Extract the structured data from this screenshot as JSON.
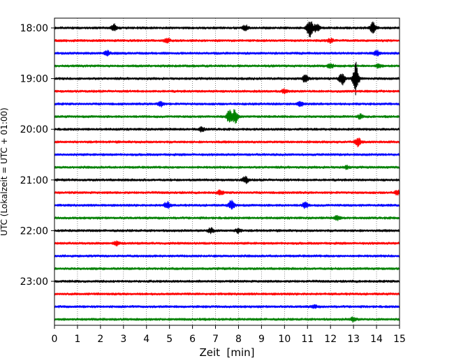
{
  "chart_data": {
    "type": "line",
    "title": "",
    "xlabel": "Zeit  [min]",
    "ylabel": "UTC (Lokalzeit = UTC + 01:00)",
    "xlim": [
      0,
      15
    ],
    "x_ticks": [
      0,
      1,
      2,
      3,
      4,
      5,
      6,
      7,
      8,
      9,
      10,
      11,
      12,
      13,
      14,
      15
    ],
    "x_tick_labels": [
      "0",
      "1",
      "2",
      "3",
      "4",
      "5",
      "6",
      "7",
      "8",
      "9",
      "10",
      "11",
      "12",
      "13",
      "14",
      "15"
    ],
    "y_tick_labels": [
      "18:00",
      "19:00",
      "20:00",
      "21:00",
      "22:00",
      "23:00"
    ],
    "grid": "vertical dotted",
    "trace_interval_minutes": 15,
    "trace_colors": [
      "#000000",
      "#ff0000",
      "#0000ff",
      "#008000"
    ],
    "traces": [
      {
        "start": "18:00",
        "color": "#000000",
        "events": [
          {
            "t": 2.6,
            "amp": 5
          },
          {
            "t": 8.3,
            "amp": 4
          },
          {
            "t": 11.1,
            "amp": 14
          },
          {
            "t": 11.4,
            "amp": 6
          },
          {
            "t": 13.85,
            "amp": 8
          }
        ]
      },
      {
        "start": "18:15",
        "color": "#ff0000",
        "events": [
          {
            "t": 4.9,
            "amp": 3
          },
          {
            "t": 12.0,
            "amp": 3
          }
        ]
      },
      {
        "start": "18:30",
        "color": "#0000ff",
        "events": [
          {
            "t": 2.3,
            "amp": 3
          },
          {
            "t": 14.0,
            "amp": 4
          }
        ]
      },
      {
        "start": "18:45",
        "color": "#008000",
        "events": [
          {
            "t": 12.0,
            "amp": 3
          },
          {
            "t": 14.1,
            "amp": 3
          }
        ]
      },
      {
        "start": "19:00",
        "color": "#000000",
        "events": [
          {
            "t": 10.9,
            "amp": 5
          },
          {
            "t": 12.5,
            "amp": 10
          },
          {
            "t": 13.1,
            "amp": 22
          }
        ]
      },
      {
        "start": "19:15",
        "color": "#ff0000",
        "events": [
          {
            "t": 10.0,
            "amp": 3
          }
        ]
      },
      {
        "start": "19:30",
        "color": "#0000ff",
        "events": [
          {
            "t": 4.6,
            "amp": 4
          },
          {
            "t": 10.7,
            "amp": 3
          }
        ]
      },
      {
        "start": "19:45",
        "color": "#008000",
        "events": [
          {
            "t": 7.6,
            "amp": 8
          },
          {
            "t": 7.85,
            "amp": 10
          },
          {
            "t": 13.3,
            "amp": 3
          }
        ]
      },
      {
        "start": "20:00",
        "color": "#000000",
        "events": [
          {
            "t": 6.4,
            "amp": 3
          }
        ]
      },
      {
        "start": "20:15",
        "color": "#ff0000",
        "events": [
          {
            "t": 13.2,
            "amp": 6
          }
        ]
      },
      {
        "start": "20:30",
        "color": "#0000ff",
        "events": []
      },
      {
        "start": "20:45",
        "color": "#008000",
        "events": [
          {
            "t": 12.7,
            "amp": 2
          }
        ]
      },
      {
        "start": "21:00",
        "color": "#000000",
        "events": [
          {
            "t": 8.3,
            "amp": 5
          }
        ]
      },
      {
        "start": "21:15",
        "color": "#ff0000",
        "events": [
          {
            "t": 7.2,
            "amp": 3
          },
          {
            "t": 14.9,
            "amp": 3
          }
        ]
      },
      {
        "start": "21:30",
        "color": "#0000ff",
        "events": [
          {
            "t": 4.9,
            "amp": 5
          },
          {
            "t": 7.7,
            "amp": 7
          },
          {
            "t": 10.9,
            "amp": 4
          }
        ]
      },
      {
        "start": "21:45",
        "color": "#008000",
        "events": [
          {
            "t": 12.3,
            "amp": 3
          }
        ]
      },
      {
        "start": "22:00",
        "color": "#000000",
        "events": [
          {
            "t": 6.8,
            "amp": 4
          },
          {
            "t": 8.0,
            "amp": 3
          }
        ]
      },
      {
        "start": "22:15",
        "color": "#ff0000",
        "events": [
          {
            "t": 2.7,
            "amp": 3
          }
        ]
      },
      {
        "start": "22:30",
        "color": "#0000ff",
        "events": []
      },
      {
        "start": "22:45",
        "color": "#008000",
        "events": []
      },
      {
        "start": "23:00",
        "color": "#000000",
        "events": []
      },
      {
        "start": "23:15",
        "color": "#ff0000",
        "events": []
      },
      {
        "start": "23:30",
        "color": "#0000ff",
        "events": [
          {
            "t": 11.3,
            "amp": 2
          }
        ]
      },
      {
        "start": "23:45",
        "color": "#008000",
        "events": [
          {
            "t": 13.0,
            "amp": 3
          }
        ]
      }
    ]
  }
}
